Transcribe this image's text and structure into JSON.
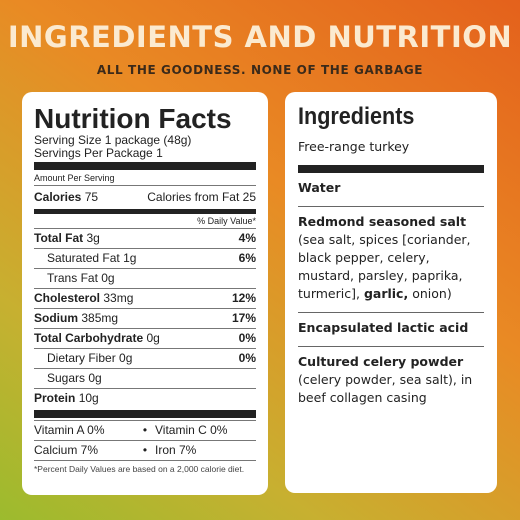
{
  "header": {
    "title": "INGREDIENTS AND NUTRITION",
    "subtitle": "ALL THE GOODNESS. NONE OF THE GARBAGE"
  },
  "nutrition": {
    "title": "Nutrition Facts",
    "serving_size": "Serving Size 1 package (48g)",
    "servings": "Servings Per Package 1",
    "amount_per_serving": "Amount Per Serving",
    "calories": {
      "label": "Calories",
      "value": "75"
    },
    "calories_from_fat": {
      "label": "Calories from Fat",
      "value": "25"
    },
    "dv_header": "% Daily Value*",
    "rows": [
      {
        "label": "Total Fat",
        "amount": "3g",
        "dv": "4%",
        "level": "main"
      },
      {
        "label": "Saturated Fat",
        "amount": "1g",
        "dv": "6%",
        "level": "sub"
      },
      {
        "label": "Trans Fat",
        "amount": "0g",
        "level": "sub"
      },
      {
        "label": "Cholesterol",
        "amount": "33mg",
        "dv": "12%",
        "level": "main"
      },
      {
        "label": "Sodium",
        "amount": "385mg",
        "dv": "17%",
        "level": "main"
      },
      {
        "label": "Total Carbohydrate",
        "amount": "0g",
        "dv": "0%",
        "level": "main"
      },
      {
        "label": "Dietary Fiber",
        "amount": "0g",
        "dv": "0%",
        "level": "sub"
      },
      {
        "label": "Sugars",
        "amount": "0g",
        "level": "sub"
      },
      {
        "label": "Protein",
        "amount": "10g",
        "level": "main"
      }
    ],
    "vitamins": [
      [
        "Vitamin A 0%",
        "Vitamin C 0%"
      ],
      [
        "Calcium 7%",
        "Iron 7%"
      ]
    ],
    "footnote": "*Percent Daily Values are based on a 2,000 calorie diet."
  },
  "ingredients": {
    "title": "Ingredients",
    "items": [
      [
        {
          "text": "Free-range turkey",
          "weight": "normal"
        }
      ],
      [
        {
          "text": "Water",
          "weight": "bold"
        }
      ],
      [
        {
          "text": "Redmond seasoned salt",
          "weight": "bold"
        },
        {
          "text": "(sea salt, spices [coriander, black pepper, celery, mustard, parsley, paprika, turmeric],",
          "weight": "normal"
        },
        {
          "text": "garlic,",
          "weight": "bold"
        },
        {
          "text": "onion)",
          "weight": "normal"
        }
      ],
      [
        {
          "text": "Encapsulated lactic acid",
          "weight": "bold"
        }
      ],
      [
        {
          "text": "Cultured celery powder",
          "weight": "bold"
        },
        {
          "text": "(celery powder, sea salt), in beef collagen casing",
          "weight": "normal"
        }
      ]
    ]
  }
}
